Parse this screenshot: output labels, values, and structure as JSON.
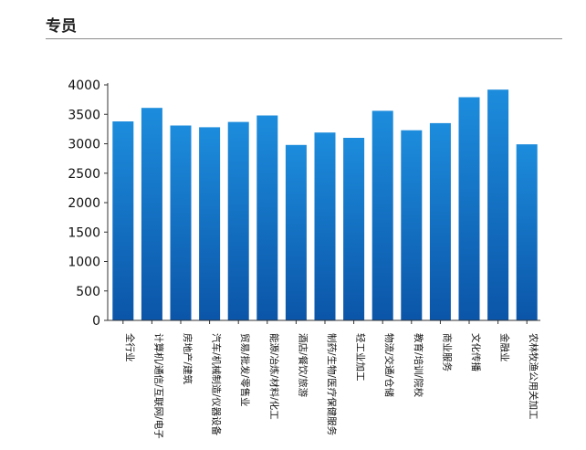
{
  "header": {
    "title": "专员"
  },
  "colors": {
    "bar_top": "#1d8cdc",
    "bar_bottom": "#0b55a8",
    "axis": "#333333",
    "rule": "#8a8a8a"
  },
  "chart_data": {
    "type": "bar",
    "title": "",
    "xlabel": "",
    "ylabel": "",
    "ylim": [
      0,
      4000
    ],
    "yticks": [
      0,
      500,
      1000,
      1500,
      2000,
      2500,
      3000,
      3500,
      4000
    ],
    "grid": false,
    "categories": [
      "全行业",
      "计算机/通信/互联网/电子",
      "房地产/建筑",
      "汽车/机械制造/仪器设备",
      "贸易/批发/零售业",
      "能源/冶炼/材料/化工",
      "酒店/餐饮/旅游",
      "制药/生物/医疗保健服务",
      "轻工业加工",
      "物流/交通/仓储",
      "教育/培训/院校",
      "商业服务",
      "文化传播",
      "金融业",
      "农林牧渔公用关加工"
    ],
    "values": [
      3380,
      3610,
      3310,
      3280,
      3370,
      3480,
      2980,
      3190,
      3100,
      3560,
      3230,
      3350,
      3790,
      3920,
      2990
    ]
  }
}
